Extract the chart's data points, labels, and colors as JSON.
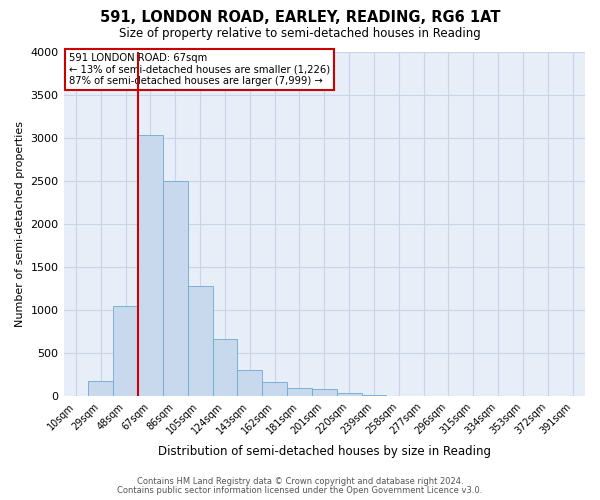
{
  "title": "591, LONDON ROAD, EARLEY, READING, RG6 1AT",
  "subtitle": "Size of property relative to semi-detached houses in Reading",
  "xlabel": "Distribution of semi-detached houses by size in Reading",
  "ylabel": "Number of semi-detached properties",
  "bar_color": "#c8d9ee",
  "bar_edge_color": "#6aaad4",
  "categories": [
    "10sqm",
    "29sqm",
    "48sqm",
    "67sqm",
    "86sqm",
    "105sqm",
    "124sqm",
    "143sqm",
    "162sqm",
    "181sqm",
    "201sqm",
    "220sqm",
    "239sqm",
    "258sqm",
    "277sqm",
    "296sqm",
    "315sqm",
    "334sqm",
    "353sqm",
    "372sqm",
    "391sqm"
  ],
  "values": [
    5,
    180,
    1050,
    3030,
    2500,
    1280,
    670,
    300,
    170,
    100,
    80,
    40,
    10,
    5,
    2,
    2,
    0,
    0,
    0,
    0,
    0
  ],
  "vline_x": 2.5,
  "vline_color": "#cc0000",
  "ylim": [
    0,
    4000
  ],
  "yticks": [
    0,
    500,
    1000,
    1500,
    2000,
    2500,
    3000,
    3500,
    4000
  ],
  "annotation_title": "591 LONDON ROAD: 67sqm",
  "annotation_line1": "← 13% of semi-detached houses are smaller (1,226)",
  "annotation_line2": "87% of semi-detached houses are larger (7,999) →",
  "footer1": "Contains HM Land Registry data © Crown copyright and database right 2024.",
  "footer2": "Contains public sector information licensed under the Open Government Licence v3.0.",
  "bg_color": "#ffffff",
  "plot_bg_color": "#e8eef8",
  "grid_color": "#c8d4e8",
  "annotation_box_color": "#ffffff",
  "annotation_box_edge": "#cc0000"
}
